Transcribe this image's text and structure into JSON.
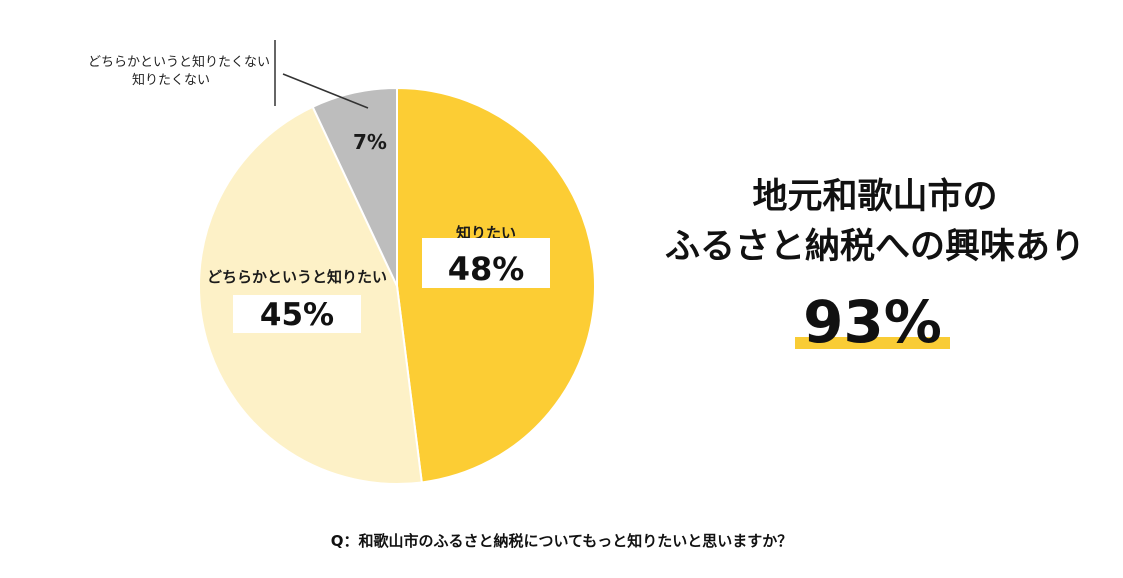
{
  "chart_data": {
    "type": "pie",
    "slices": [
      {
        "label": "知りたい",
        "value": 48,
        "display": "48%",
        "color": "#fccd34"
      },
      {
        "label": "どちらかというと知りたい",
        "value": 45,
        "display": "45%",
        "color": "#fdf1c7"
      },
      {
        "label": "どちらかというと知りたくない",
        "label2": "知りたくない",
        "value": 7,
        "display": "7%",
        "color": "#bdbdbd"
      }
    ],
    "stroke_color": "#ffffff",
    "leader_color": "#333333",
    "question": "Q：和歌山市のふるさと納税についてもっと知りたいと思いますか？"
  },
  "summary": {
    "line1": "地元和歌山市の",
    "line2": "ふるさと納税への興味あり",
    "value": "93%",
    "accent_color": "#f9cc35"
  }
}
